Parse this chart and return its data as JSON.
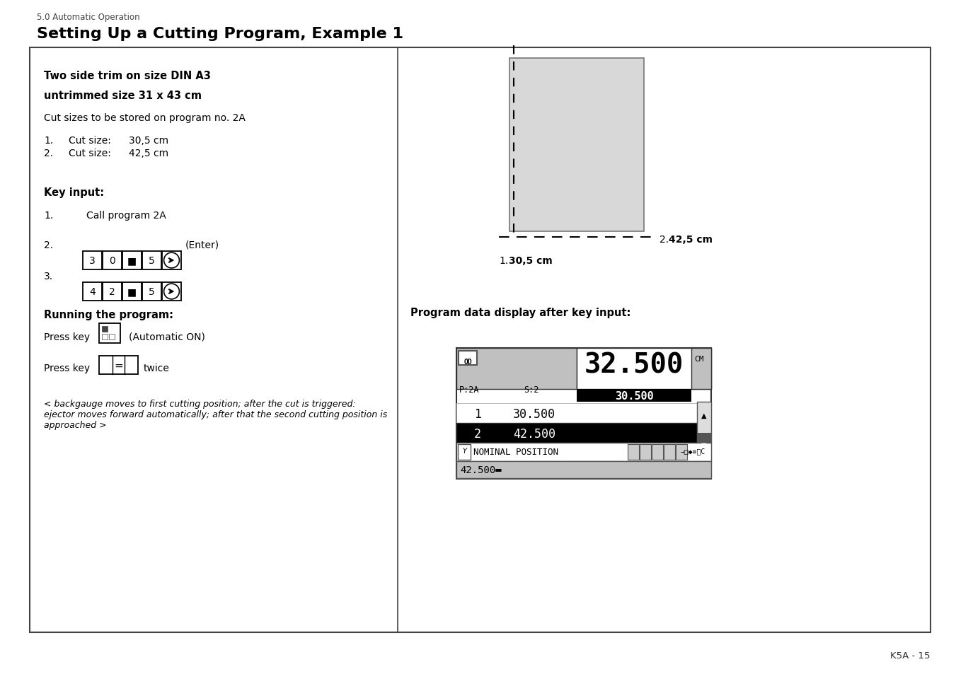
{
  "page_label": "5.0 Automatic Operation",
  "title": "Setting Up a Cutting Program, Example 1",
  "page_num": "K5A - 15",
  "bold1": "Two side trim on size DIN A3",
  "bold2": "untrimmed size 31 x 43 cm",
  "normal1": "Cut sizes to be stored on program no. 2A",
  "cut1_label_a": "1.",
  "cut1_label_b": "Cut size:",
  "cut1_label_c": "30,5 cm",
  "cut2_label_a": "2.",
  "cut2_label_b": "Cut size:",
  "cut2_label_c": "42,5 cm",
  "key_input": "Key input:",
  "call_prog": "Call program 2A",
  "keys2": [
    "3",
    "0",
    "■",
    "5"
  ],
  "keys3": [
    "4",
    "2",
    "■",
    "5"
  ],
  "enter_label": "(Enter)",
  "running": "Running the program:",
  "press1a": "Press key",
  "press1b": "(Automatic ON)",
  "press2a": "Press key",
  "press2b": "twice",
  "italic_text": "< backgauge moves to first cutting position; after the cut is triggered:\nejector moves forward automatically; after that the second cutting position is\napproached >",
  "prog_data_label": "Program data display after key input:",
  "diag_cut1": "1.  30,5 cm",
  "diag_cut2": "2.  42,5 cm",
  "diag_cut2_num": "2.",
  "diag_cut2_val": "42,5 cm",
  "diag_cut1_num": "1.",
  "diag_cut1_val": "30,5 cm",
  "disp_big": "32.500",
  "disp_sub": "30.500",
  "disp_prog": "P:2A",
  "disp_step": "S:2",
  "disp_unit": "CM",
  "disp_r1_num": "1",
  "disp_r1_val": "30.500",
  "disp_r2_num": "2",
  "disp_r2_val": "42.500",
  "disp_nom": "NOMINAL POSITION",
  "disp_val": "42.500",
  "bg": "#ffffff",
  "gray_paper": "#d8d8d8",
  "gray_dotted": "#c0c0c0"
}
